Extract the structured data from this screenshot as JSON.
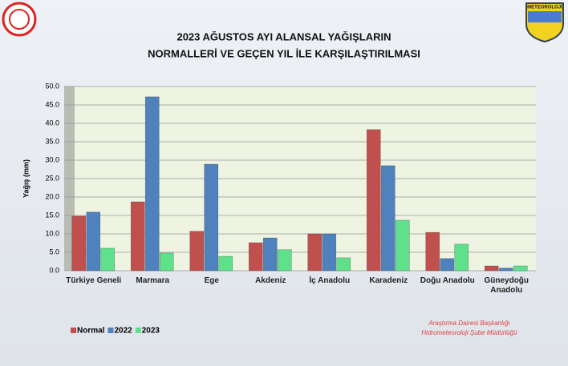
{
  "logo_text": "METEOROLOJİ",
  "chart_data": {
    "type": "bar",
    "title": "2023 AĞUSTOS AYI ALANSAL YAĞIŞLARIN",
    "subtitle": "NORMALLERİ VE GEÇEN YIL İLE KARŞILAŞTIRILMASI",
    "y_label": "Yağış (mm)",
    "footer": [
      "Araştırma Dairesi Başkanlığı",
      "Hidrometeoroloji Şube Müdürlüğü"
    ],
    "categories": [
      "Türkiye Geneli",
      "Marmara",
      "Ege",
      "Akdeniz",
      "İç Anadolu",
      "Karadeniz",
      "Doğu Anadolu",
      "Güneydoğu Anadolu"
    ],
    "series": [
      {
        "name": "Normal",
        "color": "#c0504d",
        "values": [
          14.8,
          18.7,
          10.7,
          7.6,
          10.0,
          38.3,
          10.4,
          1.3
        ]
      },
      {
        "name": "2022",
        "color": "#4f81bd",
        "values": [
          15.9,
          47.2,
          28.9,
          8.9,
          10.0,
          28.5,
          3.3,
          0.7
        ]
      },
      {
        "name": "2023",
        "color": "#5fe08a",
        "values": [
          6.1,
          4.8,
          3.9,
          5.7,
          3.5,
          13.7,
          7.2,
          1.3
        ]
      }
    ],
    "ylim": [
      0,
      50
    ],
    "yticks": [
      {
        "value": 0,
        "label": "0.0"
      },
      {
        "value": 5,
        "label": "5.0"
      },
      {
        "value": 10,
        "label": "10.0"
      },
      {
        "value": 15,
        "label": "15.0"
      },
      {
        "value": 20,
        "label": "20.0"
      },
      {
        "value": 25,
        "label": "25.0"
      },
      {
        "value": 30,
        "label": "30.0"
      },
      {
        "value": 35,
        "label": "35.0"
      },
      {
        "value": 40,
        "label": "40.0"
      },
      {
        "value": 45,
        "label": "45.0"
      },
      {
        "value": 50,
        "label": "50.0"
      }
    ],
    "grid": true,
    "legend": "bottom-left"
  }
}
